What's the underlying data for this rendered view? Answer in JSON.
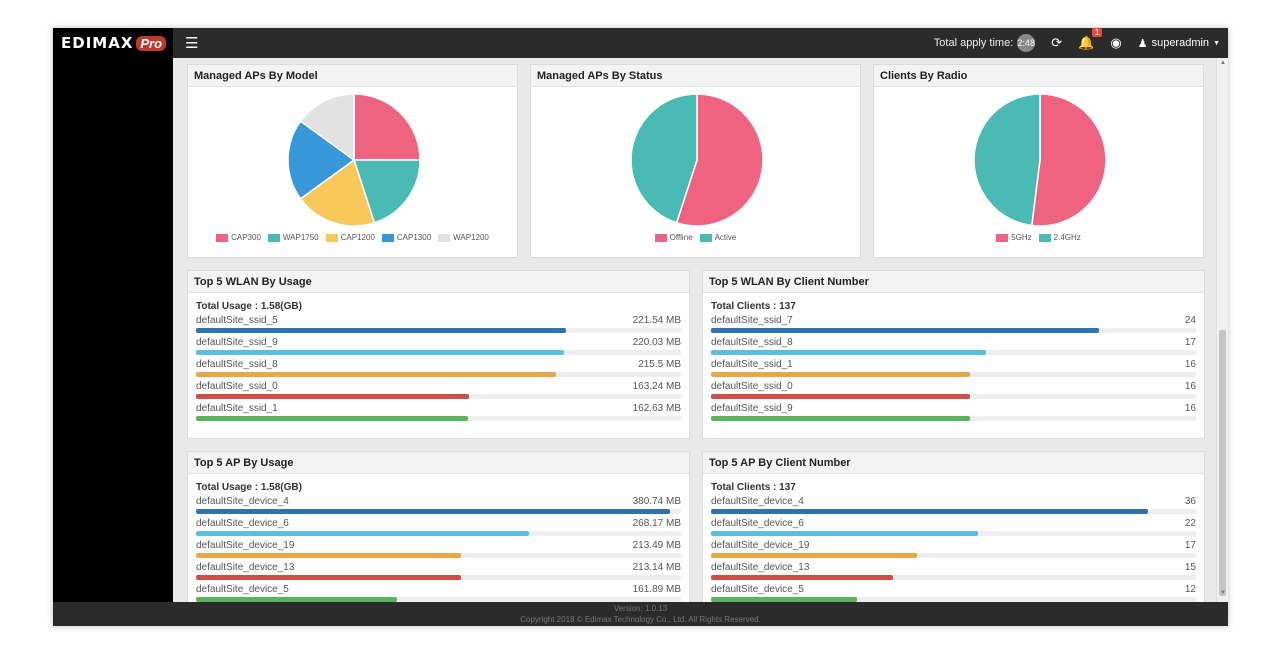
{
  "brand": {
    "logo_text": "EDIMAX",
    "logo_suffix": "Pro"
  },
  "topbar": {
    "apply_time_label": "Total apply time:",
    "apply_time_value": "2:48",
    "notification_count": "1",
    "user": "superadmin"
  },
  "colors": {
    "pink": "#ef6381",
    "teal": "#4abab4",
    "yellow": "#f8c95a",
    "blue": "#3698d8",
    "gray": "#e2e2e2",
    "bar_dark_blue": "#2f73b1",
    "bar_light_blue": "#5bbde0",
    "bar_orange": "#e8a848",
    "bar_red": "#cd4f46",
    "bar_green": "#5bb25d"
  },
  "charts": [
    {
      "title": "Managed APs By Model",
      "chart_data": {
        "type": "pie",
        "categories": [
          "CAP300",
          "WAP1750",
          "CAP1200",
          "CAP1300",
          "WAP1200"
        ],
        "values": [
          25,
          20,
          20,
          20,
          15
        ],
        "colors": [
          "#ef6381",
          "#4abab4",
          "#f8c95a",
          "#3698d8",
          "#e2e2e2"
        ]
      }
    },
    {
      "title": "Managed APs By Status",
      "chart_data": {
        "type": "pie",
        "categories": [
          "Offline",
          "Active"
        ],
        "values": [
          55,
          45
        ],
        "colors": [
          "#ef6381",
          "#4abab4"
        ]
      }
    },
    {
      "title": "Clients By Radio",
      "chart_data": {
        "type": "pie",
        "categories": [
          "5GHz",
          "2.4GHz"
        ],
        "values": [
          52,
          48
        ],
        "colors": [
          "#ef6381",
          "#4abab4"
        ]
      }
    }
  ],
  "bar_panels": [
    {
      "title": "Top 5 WLAN By Usage",
      "total": "Total Usage : 1.58(GB)",
      "chart_data": {
        "type": "bar",
        "unit": "MB",
        "max": 290,
        "categories": [
          "defaultSite_ssid_5",
          "defaultSite_ssid_9",
          "defaultSite_ssid_8",
          "defaultSite_ssid_0",
          "defaultSite_ssid_1"
        ],
        "values": [
          221.54,
          220.03,
          215.5,
          163.24,
          162.63
        ],
        "display": [
          "221.54 MB",
          "220.03 MB",
          "215.5 MB",
          "163.24 MB",
          "162.63 MB"
        ]
      }
    },
    {
      "title": "Top 5 WLAN By Client Number",
      "total": "Total Clients : 137",
      "chart_data": {
        "type": "bar",
        "max": 30,
        "categories": [
          "defaultSite_ssid_7",
          "defaultSite_ssid_8",
          "defaultSite_ssid_1",
          "defaultSite_ssid_0",
          "defaultSite_ssid_9"
        ],
        "values": [
          24,
          17,
          16,
          16,
          16
        ],
        "display": [
          "24",
          "17",
          "16",
          "16",
          "16"
        ]
      }
    },
    {
      "title": "Top 5 AP By Usage",
      "total": "Total Usage : 1.58(GB)",
      "chart_data": {
        "type": "bar",
        "max": 390,
        "categories": [
          "defaultSite_device_4",
          "defaultSite_device_6",
          "defaultSite_device_19",
          "defaultSite_device_13",
          "defaultSite_device_5"
        ],
        "values": [
          380.74,
          268.17,
          213.49,
          213.14,
          161.89
        ],
        "display": [
          "380.74 MB",
          "268.17 MB",
          "213.49 MB",
          "213.14 MB",
          "161.89 MB"
        ]
      }
    },
    {
      "title": "Top 5 AP By Client Number",
      "total": "Total Clients : 137",
      "chart_data": {
        "type": "bar",
        "max": 40,
        "categories": [
          "defaultSite_device_4",
          "defaultSite_device_6",
          "defaultSite_device_19",
          "defaultSite_device_13",
          "defaultSite_device_5"
        ],
        "values": [
          36,
          22,
          17,
          15,
          12
        ],
        "display": [
          "36",
          "22",
          "17",
          "15",
          "12"
        ]
      }
    }
  ],
  "footer": {
    "version": "Version: 1.0.13",
    "copyright": "Copyright 2018 © Edimax Technology Co., Ltd. All Rights Reserved."
  }
}
